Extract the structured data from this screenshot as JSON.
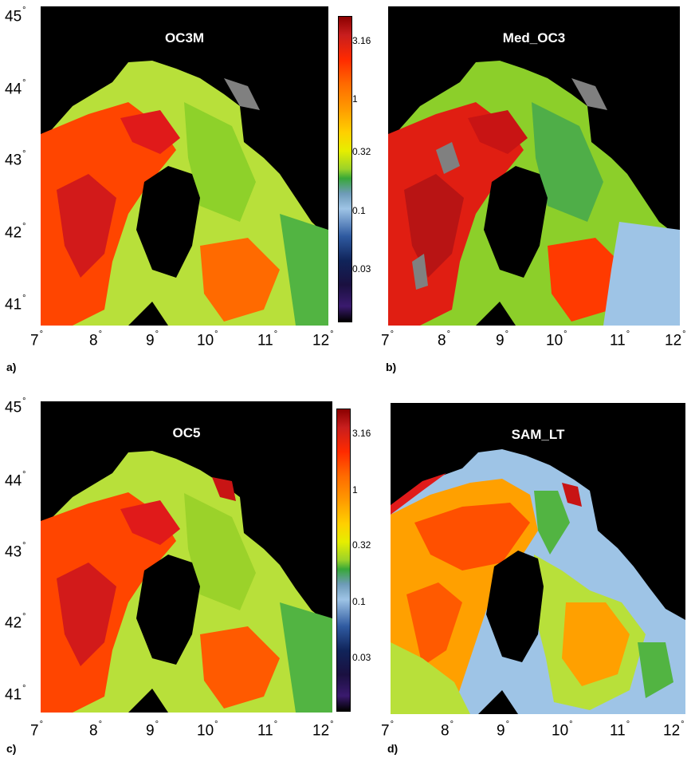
{
  "panels": [
    {
      "title": "OC3M",
      "label": "a)"
    },
    {
      "title": "Med_OC3",
      "label": "b)"
    },
    {
      "title": "OC5",
      "label": "c)"
    },
    {
      "title": "SAM_LT",
      "label": "d)"
    }
  ],
  "lon_ticks": [
    "7",
    "8",
    "9",
    "10",
    "11",
    "12"
  ],
  "lat_ticks": [
    "45",
    "44",
    "43",
    "42",
    "41"
  ],
  "degree": "°",
  "colorbar_ticks": [
    "3.16",
    "1",
    "0.32",
    "0.1",
    "0.03"
  ],
  "colors": {
    "land": "#000000",
    "no_data": "#808080",
    "low": "#9ec4e6",
    "mid": "#9bd22a",
    "high": "#ff2a00"
  }
}
